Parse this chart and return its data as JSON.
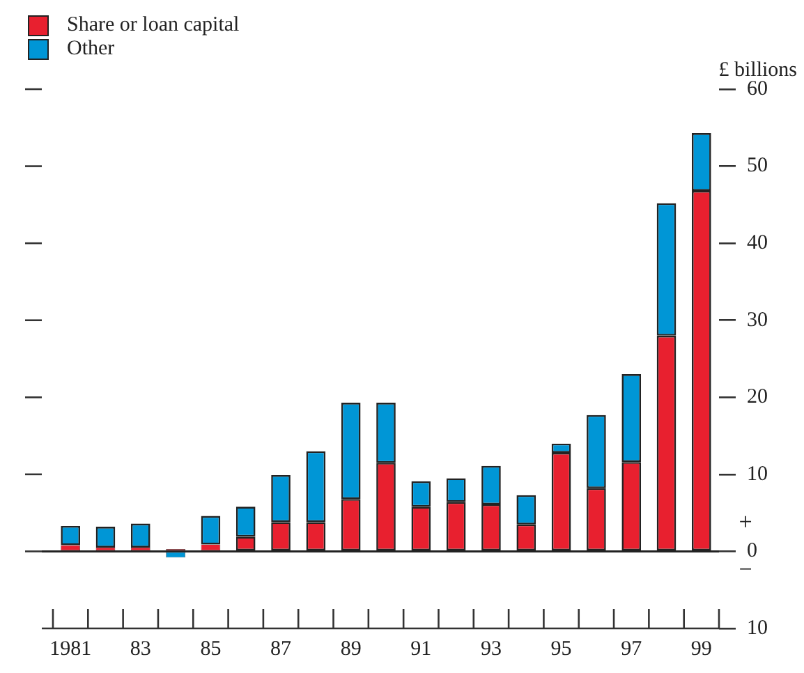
{
  "chart_data": {
    "type": "bar",
    "stacked": true,
    "ylabel": "£ billions",
    "categories": [
      "1981",
      null,
      "83",
      null,
      "85",
      null,
      "87",
      null,
      "89",
      null,
      "91",
      null,
      "93",
      null,
      "95",
      null,
      "97",
      null,
      "99"
    ],
    "series": [
      {
        "name": "Share or loan capital",
        "color": "#e8202f",
        "values": [
          0.8,
          0.5,
          0.5,
          0.3,
          0.9,
          1.9,
          3.8,
          3.8,
          6.8,
          11.5,
          5.8,
          6.4,
          6.1,
          3.5,
          12.8,
          8.2,
          11.6,
          28.0,
          46.8
        ]
      },
      {
        "name": "Other",
        "color": "#0096d6",
        "values": [
          2.5,
          2.7,
          3.1,
          -0.8,
          3.7,
          3.9,
          6.1,
          9.2,
          12.5,
          7.8,
          3.3,
          3.1,
          5.0,
          3.8,
          1.2,
          9.5,
          11.4,
          17.2,
          7.5
        ]
      }
    ],
    "ylim": [
      -10,
      60
    ],
    "yticks": [
      {
        "value": -10,
        "label": "10"
      },
      0,
      10,
      20,
      30,
      40,
      50,
      60
    ],
    "ref_lines": [
      {
        "axis": "y",
        "value": 0
      }
    ],
    "annotations": [
      "+",
      "−"
    ],
    "legend": "top left",
    "grid": false
  }
}
